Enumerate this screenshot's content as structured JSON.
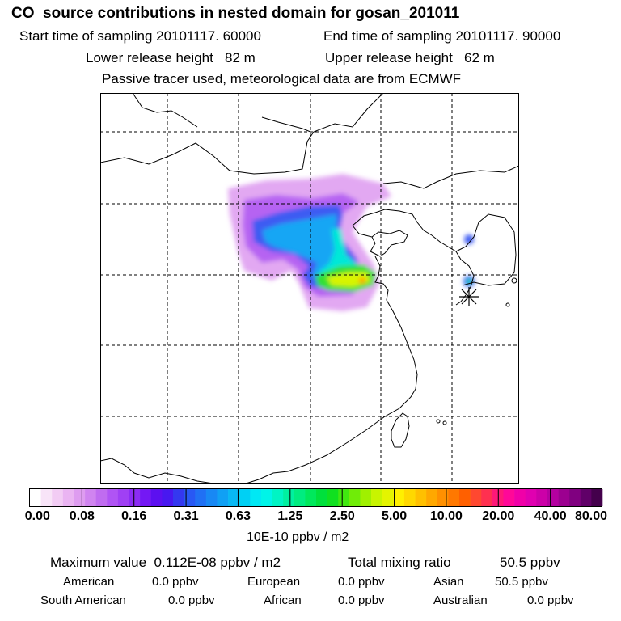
{
  "header": {
    "title": "CO  source contributions in nested domain for gosan_201011",
    "start_time": "Start time of sampling 20101117. 60000",
    "end_time": "End time of sampling 20101117. 90000",
    "lower_height": "Lower release height   82 m",
    "upper_height": "Upper release height   62 m",
    "note": "Passive tracer used, meteorological data are from ECMWF"
  },
  "colorbar": {
    "ticks": [
      "0.00",
      "0.08",
      "0.16",
      "0.31",
      "0.63",
      "1.25",
      "2.50",
      "5.00",
      "10.00",
      "20.00",
      "40.00",
      "80.00"
    ],
    "colors": [
      "#ffffff",
      "#f8e4f8",
      "#f2ccf4",
      "#eab4f2",
      "#de9cf0",
      "#d084f0",
      "#c06cf0",
      "#b054f4",
      "#a040f4",
      "#8c2cf4",
      "#7418f4",
      "#5c10f0",
      "#4818f0",
      "#3438f0",
      "#2858f4",
      "#2070f4",
      "#1888f4",
      "#10a0f4",
      "#08b8f4",
      "#00d0f4",
      "#00e8f4",
      "#00f4e8",
      "#00f4c4",
      "#00f0a0",
      "#00ec80",
      "#00e85c",
      "#00e03c",
      "#10e020",
      "#40e810",
      "#70ec08",
      "#a0f000",
      "#c8f400",
      "#e4f400",
      "#fff000",
      "#ffd800",
      "#ffc000",
      "#ffa800",
      "#ff9000",
      "#ff7800",
      "#ff6000",
      "#ff4830",
      "#ff3050",
      "#ff1878",
      "#ff0898",
      "#f000a8",
      "#e000b0",
      "#cc00a8",
      "#b400a0",
      "#9c0090",
      "#800080",
      "#600068",
      "#44004c"
    ],
    "units": "10E-10 ppbv / m2"
  },
  "stats": {
    "max_value": "Maximum value  0.112E-08 ppbv / m2",
    "total": "Total mixing ratio",
    "total_value": "50.5 ppbv",
    "regions": [
      {
        "name": "American",
        "value": "0.0 ppbv"
      },
      {
        "name": "European",
        "value": "0.0 ppbv"
      },
      {
        "name": "Asian",
        "value": "50.5 ppbv"
      },
      {
        "name": "South American",
        "value": "0.0 ppbv"
      },
      {
        "name": "African",
        "value": "0.0 ppbv"
      },
      {
        "name": "Australian",
        "value": "0.0 ppbv"
      }
    ]
  }
}
